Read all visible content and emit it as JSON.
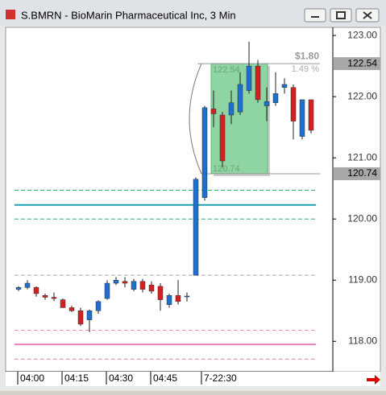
{
  "window": {
    "title": "S.BMRN - BioMarin Pharmaceutical Inc, 3 Min"
  },
  "chart_data": {
    "type": "candlestick",
    "categories": [
      "04:00",
      null,
      null,
      null,
      null,
      "04:15",
      null,
      null,
      null,
      null,
      "04:30",
      null,
      null,
      null,
      null,
      "04:45",
      null,
      null,
      null,
      null,
      null,
      "7-22:30",
      null,
      null,
      null,
      null,
      null,
      null,
      null,
      null,
      null,
      null,
      null,
      null
    ],
    "open": [
      118.85,
      118.88,
      118.88,
      118.75,
      118.72,
      118.68,
      118.55,
      118.5,
      118.35,
      118.5,
      118.7,
      118.95,
      118.98,
      118.85,
      118.98,
      118.92,
      118.9,
      118.6,
      118.75,
      118.73,
      119.08,
      120.35,
      121.8,
      121.7,
      121.7,
      121.75,
      122.1,
      122.5,
      121.85,
      121.9,
      122.15,
      122.15,
      121.35,
      121.95
    ],
    "high": [
      118.9,
      119.0,
      118.9,
      118.78,
      118.8,
      118.7,
      118.58,
      118.55,
      118.52,
      118.67,
      119.0,
      119.05,
      119.05,
      119.02,
      119.02,
      118.98,
      118.95,
      118.78,
      119.0,
      118.8,
      120.68,
      121.85,
      122.1,
      121.75,
      122.1,
      122.4,
      122.9,
      122.6,
      122.15,
      122.4,
      122.3,
      122.2,
      121.95,
      121.95
    ],
    "low": [
      118.82,
      118.85,
      118.73,
      118.68,
      118.66,
      118.55,
      118.48,
      118.25,
      118.15,
      118.45,
      118.68,
      118.92,
      118.88,
      118.82,
      118.8,
      118.78,
      118.5,
      118.55,
      118.6,
      118.65,
      119.08,
      120.3,
      121.5,
      120.85,
      121.55,
      121.7,
      122.05,
      121.9,
      121.6,
      121.85,
      122.05,
      121.3,
      121.3,
      121.4
    ],
    "close": [
      118.88,
      118.95,
      118.78,
      118.72,
      118.7,
      118.55,
      118.5,
      118.28,
      118.5,
      118.65,
      118.95,
      119.0,
      118.95,
      118.98,
      118.85,
      118.82,
      118.68,
      118.75,
      118.65,
      118.74,
      120.65,
      121.82,
      121.72,
      120.95,
      121.9,
      122.2,
      122.5,
      121.95,
      121.92,
      122.05,
      122.2,
      121.6,
      121.95,
      121.45
    ],
    "up_color": "#1e6fd0",
    "down_color": "#d42020",
    "ylim": [
      117.53,
      123.12
    ],
    "yticks": [
      {
        "value": 118,
        "label": "118.00"
      },
      {
        "value": 119,
        "label": "119.00"
      },
      {
        "value": 120,
        "label": "120.00"
      },
      {
        "value": 121,
        "label": "121.00"
      },
      {
        "value": 122,
        "label": "122.00"
      },
      {
        "value": 123,
        "label": "123.00"
      }
    ],
    "levels": [
      {
        "value": 120.47,
        "color": "#2bb36a",
        "dash": true
      },
      {
        "value": 120.23,
        "color": "#1aa0b0",
        "dash": false
      },
      {
        "value": 120.0,
        "color": "#2bb36a",
        "dash": true
      },
      {
        "value": 119.08,
        "color": "#aaaaaa",
        "dash": true
      },
      {
        "value": 118.18,
        "color": "#f080b8",
        "dash": true
      },
      {
        "value": 117.95,
        "color": "#f080b8",
        "dash": false
      },
      {
        "value": 117.71,
        "color": "#f080b8",
        "dash": true
      }
    ],
    "measure": {
      "high": 122.54,
      "low": 120.74,
      "change_label": "$1.80",
      "percent_label": "1.49 %"
    }
  }
}
